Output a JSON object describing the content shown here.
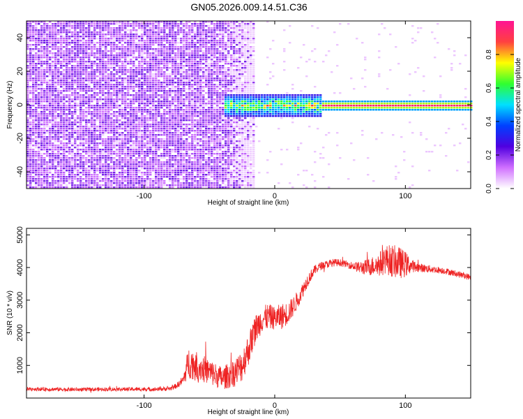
{
  "title": "GN05.2026.009.14.51.C36",
  "chart_data": [
    {
      "type": "heatmap",
      "xlabel": "Height of straight line (km)",
      "ylabel": "Frequency (Hz)",
      "xlim": [
        -190,
        150
      ],
      "ylim": [
        -50,
        50
      ],
      "xticks": [
        -100,
        0,
        100
      ],
      "yticks": [
        40,
        20,
        0,
        -20,
        -40
      ],
      "colorbar": {
        "label": "Normalized spectral amplitude",
        "range": [
          0,
          1
        ],
        "ticks": [
          "0.0",
          "0.2",
          "0.4",
          "0.6",
          "0.8"
        ],
        "tick_values": [
          0.0,
          0.2,
          0.4,
          0.6,
          0.8
        ],
        "colormap": [
          "#ffffff",
          "#d070ff",
          "#5000e0",
          "#0040ff",
          "#00e0ff",
          "#30ff30",
          "#ffff00",
          "#ff4040",
          "#ff1493"
        ]
      },
      "regions": [
        {
          "x_range": [
            -190,
            -15
          ],
          "freq_range": [
            -50,
            50
          ],
          "amplitude": 0.08,
          "pattern": "broadband noise"
        },
        {
          "x_range": [
            -40,
            35
          ],
          "freq_range": [
            -8,
            6
          ],
          "amplitude": 0.45,
          "pattern": "emerging narrowband line"
        },
        {
          "x_range": [
            35,
            150
          ],
          "freq_range": [
            -3,
            3
          ],
          "amplitude": 0.9,
          "pattern": "strong narrowband line at 0 Hz"
        }
      ]
    },
    {
      "type": "line",
      "xlabel": "Height of straight line (km)",
      "ylabel": "SNR (10 * v/v)",
      "xlim": [
        -190,
        150
      ],
      "ylim": [
        0,
        5200
      ],
      "xticks": [
        -100,
        0,
        100
      ],
      "yticks": [
        1000,
        2000,
        3000,
        4000,
        5000
      ],
      "color": "#ee2222",
      "series": [
        {
          "x": [
            -190,
            -170,
            -150,
            -130,
            -110,
            -90,
            -80,
            -75,
            -70,
            -66,
            -60,
            -55,
            -50,
            -45,
            -40,
            -35,
            -30,
            -25,
            -20,
            -15,
            -10,
            -5,
            0,
            5,
            10,
            15,
            20,
            25,
            30,
            35,
            40,
            45,
            50,
            55,
            60,
            65,
            70,
            75,
            80,
            85,
            90,
            95,
            100,
            105,
            110,
            120,
            130,
            140,
            150
          ],
          "y": [
            280,
            270,
            260,
            270,
            270,
            270,
            290,
            380,
            550,
            1100,
            1000,
            900,
            800,
            700,
            600,
            700,
            800,
            1000,
            1500,
            2100,
            2400,
            2500,
            2450,
            2500,
            2600,
            2850,
            3200,
            3600,
            3900,
            4050,
            4100,
            4150,
            4150,
            4100,
            4050,
            4000,
            4000,
            4050,
            4100,
            4250,
            4200,
            4150,
            4100,
            4050,
            4000,
            3950,
            3900,
            3800,
            3700
          ],
          "noise": [
            60,
            60,
            60,
            60,
            60,
            60,
            70,
            80,
            150,
            500,
            450,
            420,
            400,
            380,
            350,
            400,
            450,
            500,
            500,
            450,
            400,
            400,
            350,
            400,
            350,
            300,
            250,
            200,
            150,
            120,
            120,
            120,
            110,
            100,
            130,
            180,
            250,
            300,
            380,
            450,
            500,
            500,
            400,
            200,
            140,
            110,
            100,
            100,
            100
          ]
        }
      ]
    }
  ]
}
